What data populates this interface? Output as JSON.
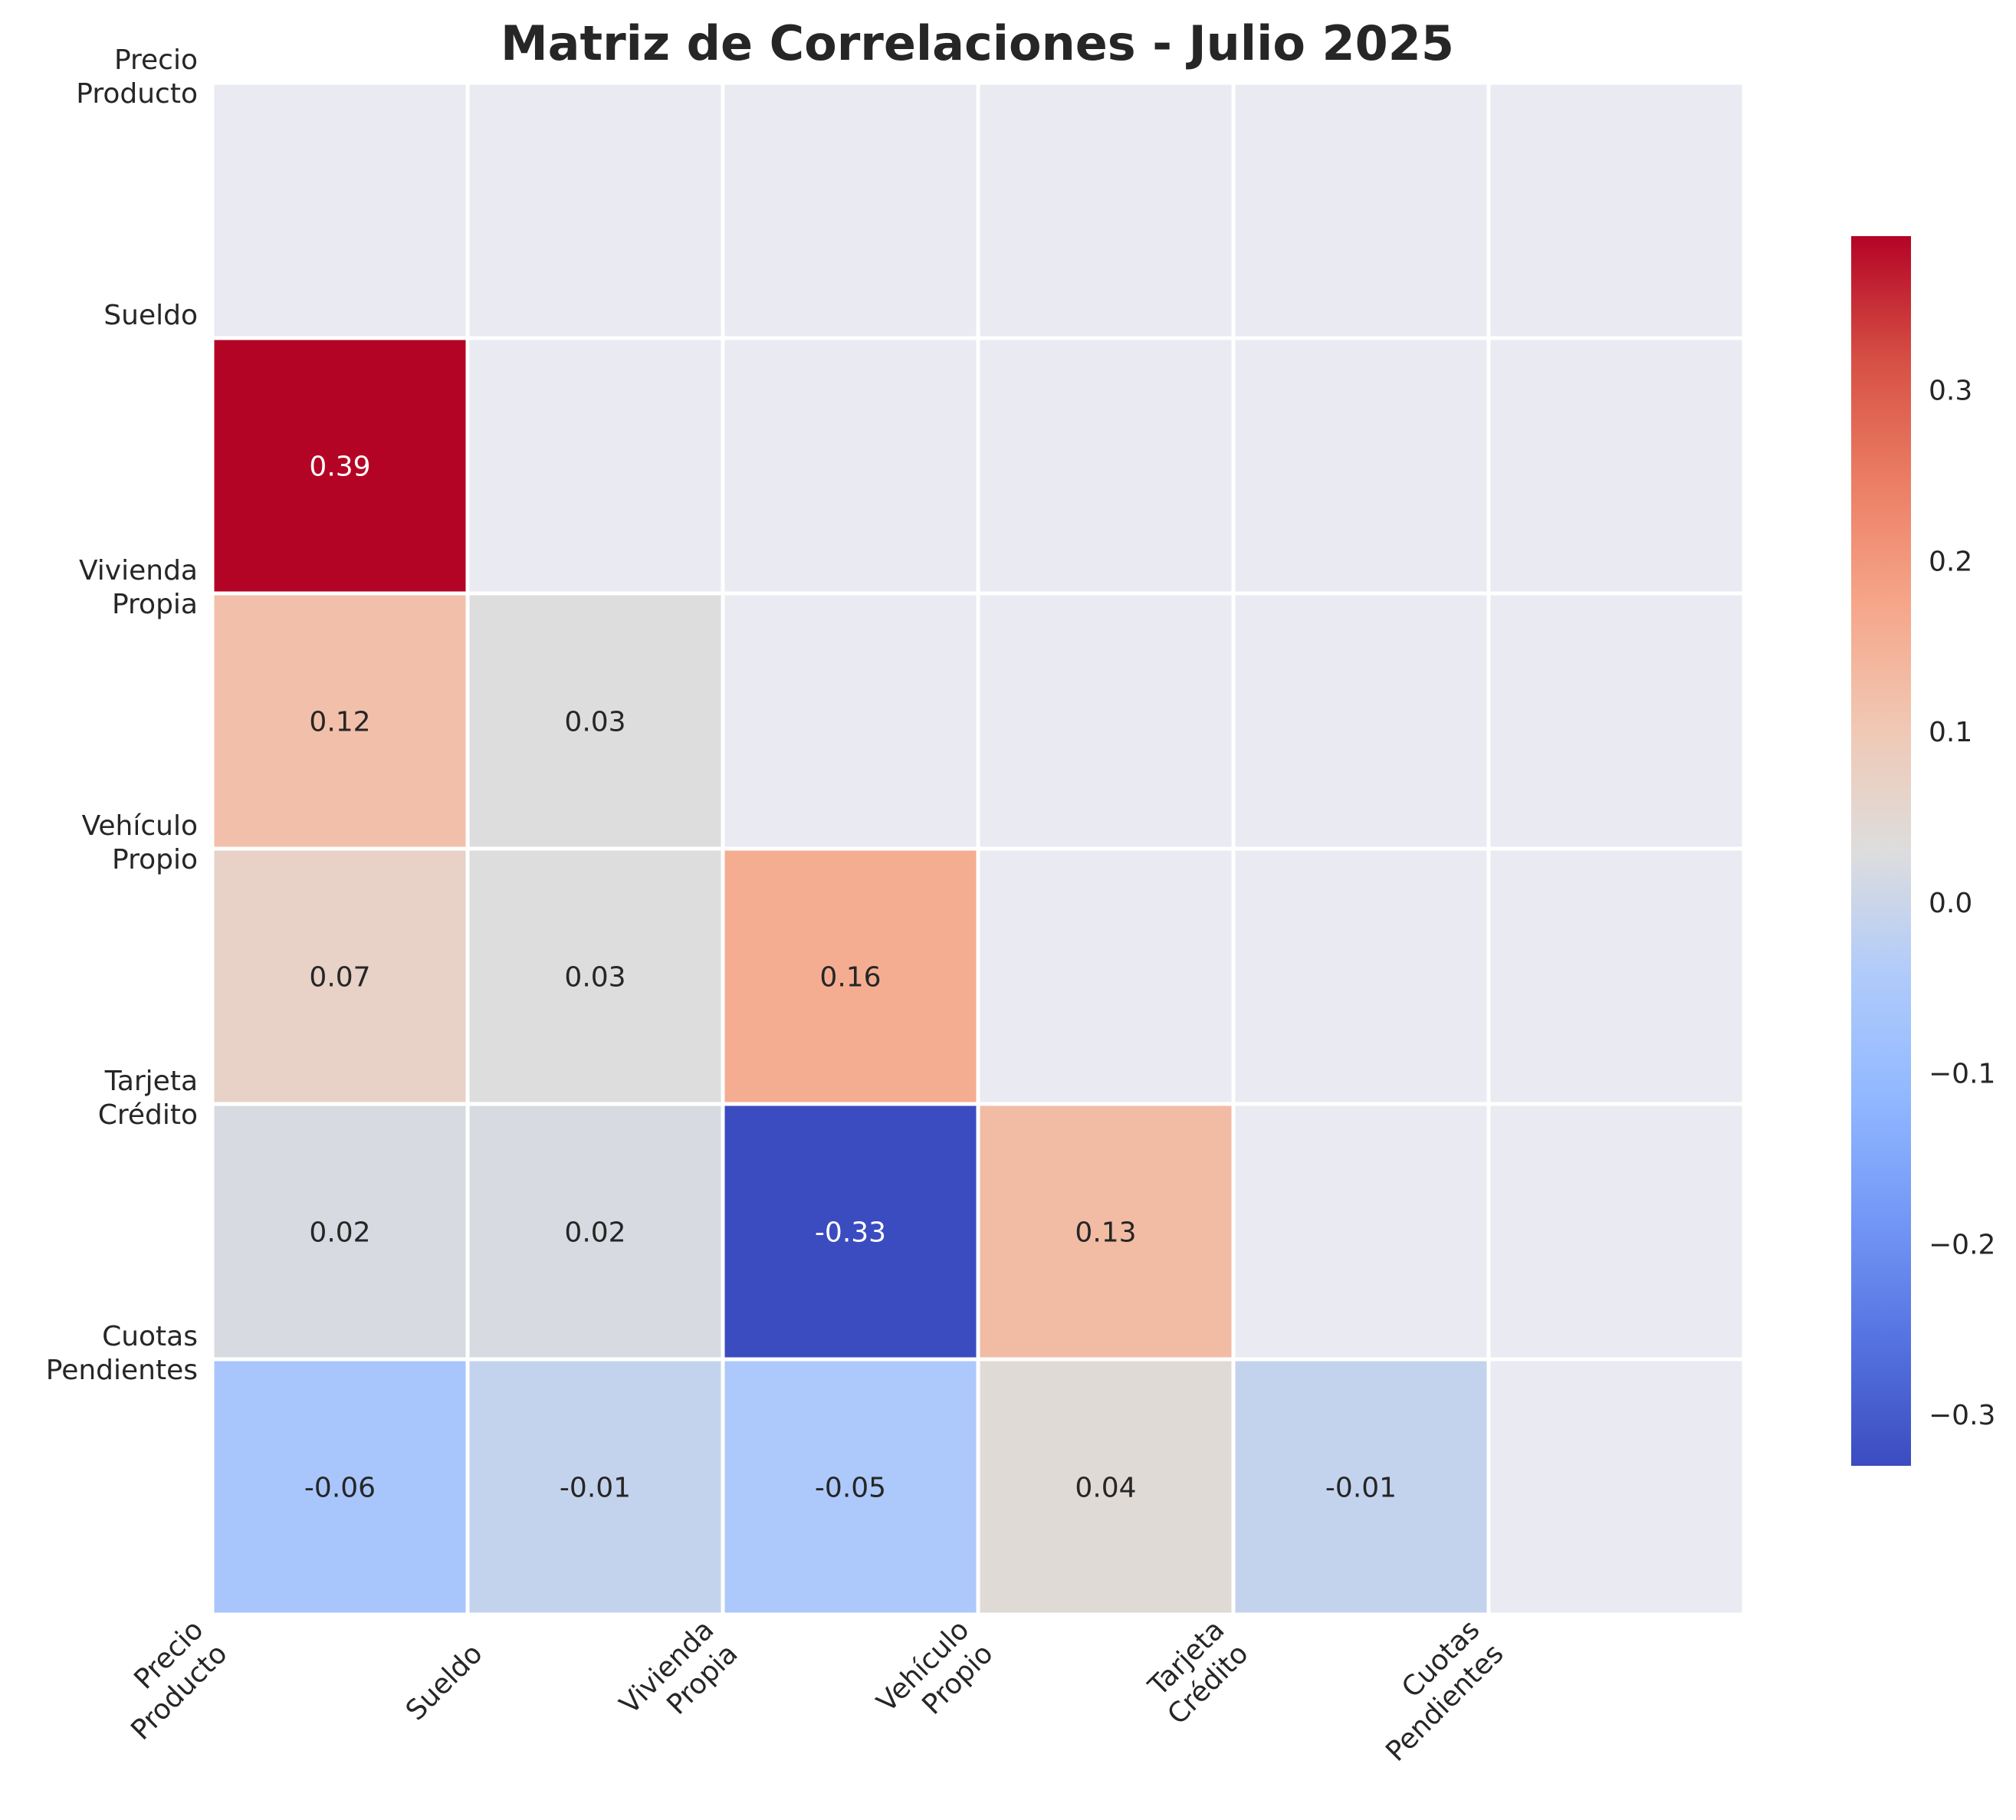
{
  "chart_data": {
    "type": "heatmap",
    "title": "Matriz de Correlaciones - Julio 2025",
    "variables": [
      [
        "Precio",
        "Producto"
      ],
      [
        "Sueldo"
      ],
      [
        "Vivienda",
        "Propia"
      ],
      [
        "Vehículo",
        "Propio"
      ],
      [
        "Tarjeta",
        "Crédito"
      ],
      [
        "Cuotas",
        "Pendientes"
      ]
    ],
    "matrix_lower_triangle": [
      [],
      [
        0.39
      ],
      [
        0.12,
        0.03
      ],
      [
        0.07,
        0.03,
        0.16
      ],
      [
        0.02,
        0.02,
        -0.33,
        0.13
      ],
      [
        -0.06,
        -0.01,
        -0.05,
        0.04,
        -0.01
      ]
    ],
    "masked": "upper triangle and diagonal",
    "colormap": "coolwarm",
    "color_range": [
      -0.33,
      0.39
    ],
    "colorbar": {
      "ticks": [
        0.3,
        0.2,
        0.1,
        0.0,
        -0.1,
        -0.2,
        -0.3
      ],
      "tick_labels": [
        "0.3",
        "0.2",
        "0.1",
        "0.0",
        "−0.1",
        "−0.2",
        "−0.3"
      ]
    },
    "colors": {
      "masked_cell": "#eaeaf2",
      "cell_border": "#ffffff",
      "text_dark": "#262626",
      "text_light": "#ffffff"
    }
  }
}
